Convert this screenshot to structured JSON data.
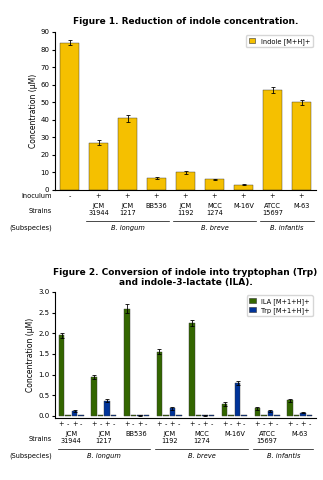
{
  "chart_data": [
    {
      "type": "bar",
      "title": "Figure 1. Reduction of indole concentration.",
      "ylabel": "Concentration (μM)",
      "xlabel": "Strains",
      "categories": [
        null,
        "JCM\n31944",
        "JCM\n1217",
        "BB536",
        "JCM\n1192",
        "MCC\n1274",
        "M-16V",
        "ATCC\n15697",
        "M-63"
      ],
      "series": [
        {
          "name": "Indole [M+H]+",
          "color": "#F5C000",
          "values": [
            84,
            27,
            41,
            7,
            10,
            6,
            3,
            57,
            50
          ],
          "errors": [
            1.5,
            1.5,
            2.0,
            0.5,
            0.8,
            0.5,
            0.3,
            1.5,
            1.5
          ]
        }
      ],
      "ylim": [
        0,
        90
      ],
      "yticks": [
        0,
        10,
        20,
        30,
        40,
        50,
        60,
        70,
        80,
        90
      ],
      "legend": "upper right",
      "annotations": [
        {
          "text": "Inoculum",
          "labels": [
            "-",
            "+",
            "+",
            "+",
            "+",
            "+",
            "+",
            "+",
            "+"
          ]
        },
        {
          "text": "(Subspecies)",
          "groups": [
            {
              "label": "B. longum",
              "start": 1,
              "end": 3
            },
            {
              "label": "B. breve",
              "start": 4,
              "end": 6
            },
            {
              "label": "B. infantis",
              "start": 7,
              "end": 8
            }
          ]
        }
      ]
    },
    {
      "type": "bar",
      "title": "Figure 2. Conversion of indole into tryptophan (Trp) and indole-3-lactate (ILA).",
      "ylabel": "Concentration (μM)",
      "xlabel": "Strains",
      "categories": [
        "JCM\n31944",
        "JCM\n1217",
        "BB536",
        "JCM\n1192",
        "MCC\n1274",
        "M-16V",
        "ATCC\n15697",
        "M-63"
      ],
      "series": [
        {
          "name": "ILA [M+1+H]+",
          "sign": "+",
          "color": "#336600",
          "values": [
            1.95,
            0.95,
            2.6,
            1.55,
            2.25,
            0.28,
            0.18,
            0.38
          ],
          "errors": [
            0.06,
            0.05,
            0.1,
            0.06,
            0.07,
            0.05,
            0.03,
            0.04
          ]
        },
        {
          "name": null,
          "sign": "-",
          "color": "#336600",
          "values": [
            0.02,
            0.02,
            0.02,
            0.02,
            0.02,
            0.02,
            0.02,
            0.02
          ]
        },
        {
          "name": "Trp [M+1+H]+",
          "sign": "+",
          "color": "#003399",
          "values": [
            0.12,
            0.37,
            0.02,
            0.18,
            0.02,
            0.8,
            0.12,
            0.08
          ],
          "errors": [
            0.03,
            0.04,
            0.01,
            0.03,
            0.01,
            0.05,
            0.02,
            0.02
          ]
        },
        {
          "name": null,
          "sign": "-",
          "color": "#003399",
          "values": [
            0.02,
            0.02,
            0.02,
            0.02,
            0.02,
            0.02,
            0.02,
            0.02
          ]
        }
      ],
      "ylim": [
        -0.05,
        3.0
      ],
      "yticks": [
        0.0,
        0.5,
        1.0,
        1.5,
        2.0,
        2.5,
        3.0
      ],
      "legend": "upper right",
      "annotations": [
        {
          "text": "(Subspecies)",
          "groups": [
            {
              "label": "B. longum",
              "start": 0,
              "end": 2
            },
            {
              "label": "B. breve",
              "start": 3,
              "end": 5
            },
            {
              "label": "B. infantis",
              "start": 6,
              "end": 7
            }
          ]
        }
      ]
    }
  ]
}
